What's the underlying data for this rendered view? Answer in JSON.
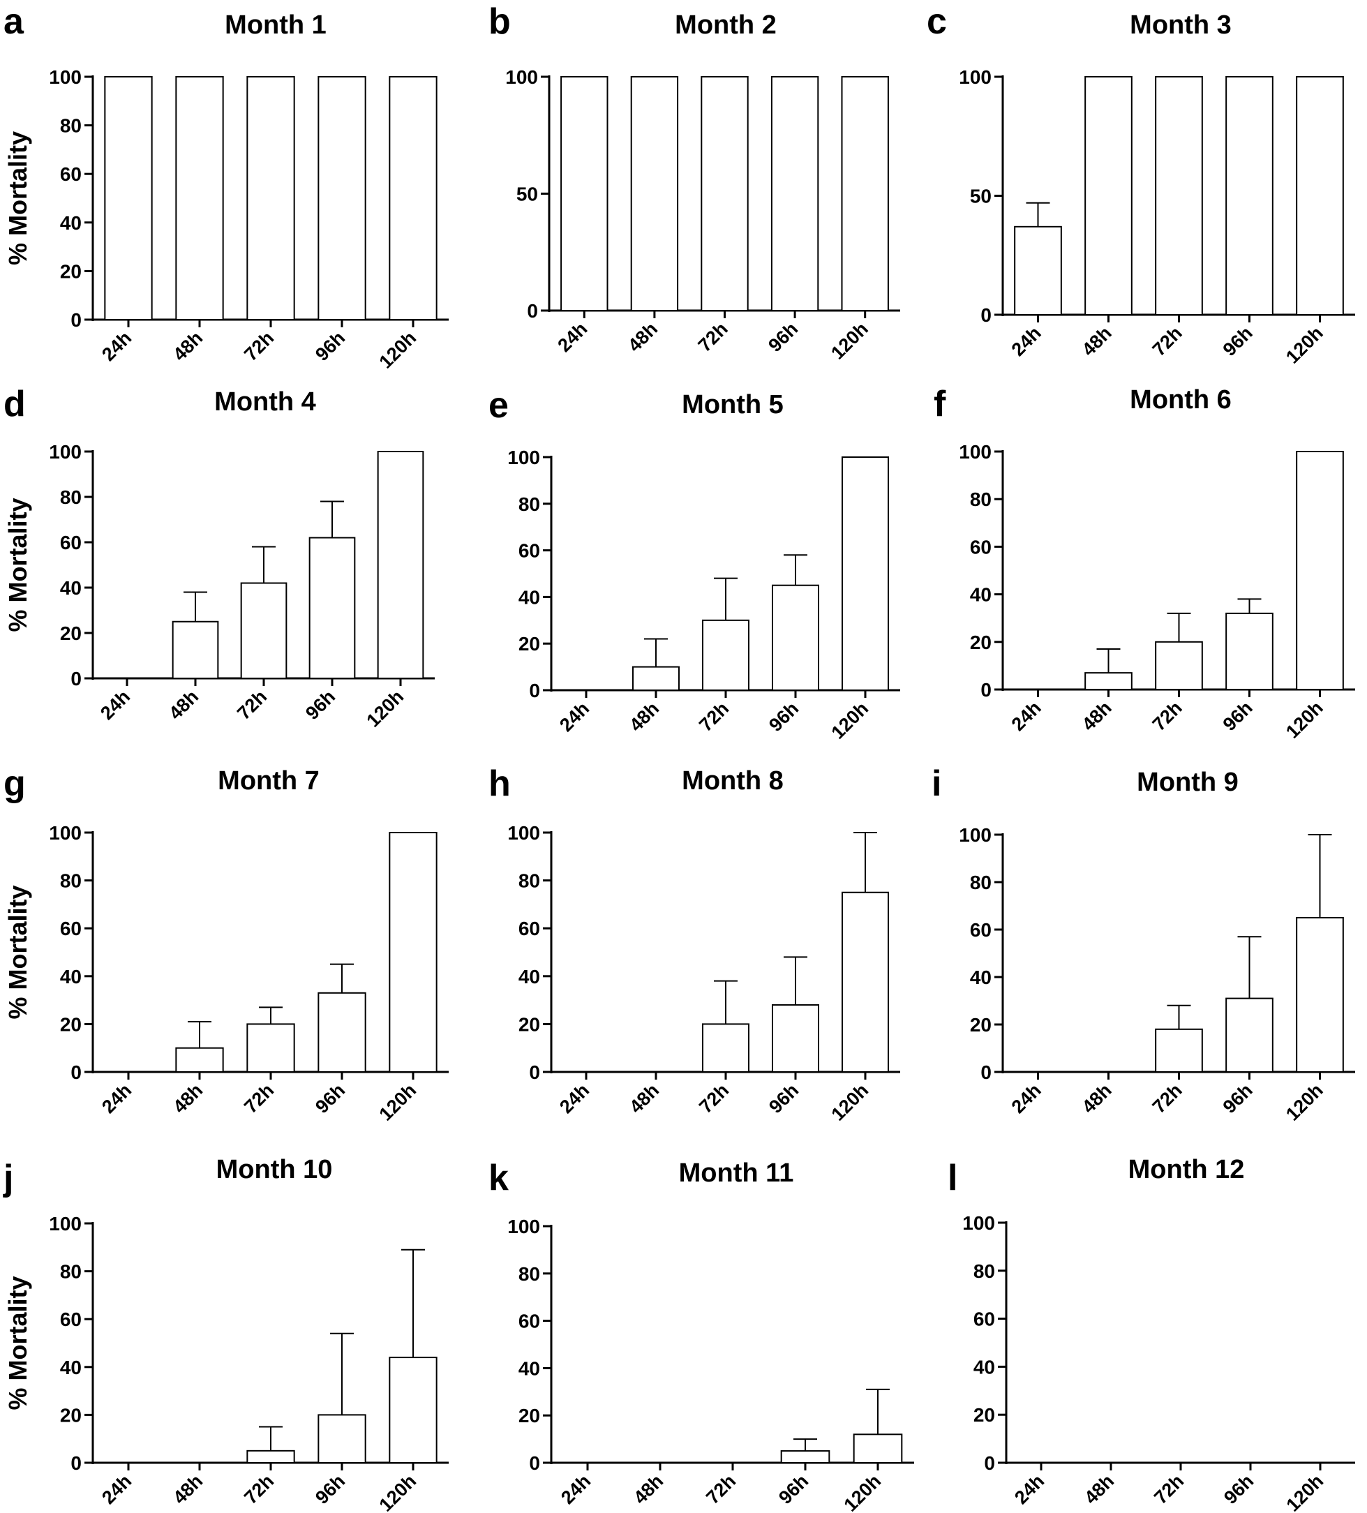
{
  "chart_data": [
    {
      "panel": "a",
      "type": "bar",
      "title": "Month 1",
      "ylabel": "% Mortality",
      "ylim": [
        0,
        100
      ],
      "yticks": [
        0,
        20,
        40,
        60,
        80,
        100
      ],
      "categories": [
        "24h",
        "48h",
        "72h",
        "96h",
        "120h"
      ],
      "values": [
        100,
        100,
        100,
        100,
        100
      ],
      "error_upper": [
        null,
        null,
        null,
        null,
        null
      ]
    },
    {
      "panel": "b",
      "type": "bar",
      "title": "Month 2",
      "ylabel": "",
      "ylim": [
        0,
        100
      ],
      "yticks": [
        0,
        50,
        100
      ],
      "categories": [
        "24h",
        "48h",
        "72h",
        "96h",
        "120h"
      ],
      "values": [
        100,
        100,
        100,
        100,
        100
      ],
      "error_upper": [
        null,
        null,
        null,
        null,
        null
      ]
    },
    {
      "panel": "c",
      "type": "bar",
      "title": "Month 3",
      "ylabel": "",
      "ylim": [
        0,
        100
      ],
      "yticks": [
        0,
        50,
        100
      ],
      "categories": [
        "24h",
        "48h",
        "72h",
        "96h",
        "120h"
      ],
      "values": [
        37,
        100,
        100,
        100,
        100
      ],
      "error_upper": [
        47,
        null,
        null,
        null,
        null
      ]
    },
    {
      "panel": "d",
      "type": "bar",
      "title": "Month 4",
      "ylabel": "% Mortality",
      "ylim": [
        0,
        100
      ],
      "yticks": [
        0,
        20,
        40,
        60,
        80,
        100
      ],
      "categories": [
        "24h",
        "48h",
        "72h",
        "96h",
        "120h"
      ],
      "values": [
        0,
        25,
        42,
        62,
        100
      ],
      "error_upper": [
        null,
        38,
        58,
        78,
        null
      ]
    },
    {
      "panel": "e",
      "type": "bar",
      "title": "Month 5",
      "ylabel": "",
      "ylim": [
        0,
        100
      ],
      "yticks": [
        0,
        20,
        40,
        60,
        80,
        100
      ],
      "categories": [
        "24h",
        "48h",
        "72h",
        "96h",
        "120h"
      ],
      "values": [
        0,
        10,
        30,
        45,
        100
      ],
      "error_upper": [
        null,
        22,
        48,
        58,
        null
      ]
    },
    {
      "panel": "f",
      "type": "bar",
      "title": "Month 6",
      "ylabel": "",
      "ylim": [
        0,
        100
      ],
      "yticks": [
        0,
        20,
        40,
        60,
        80,
        100
      ],
      "categories": [
        "24h",
        "48h",
        "72h",
        "96h",
        "120h"
      ],
      "values": [
        0,
        7,
        20,
        32,
        100
      ],
      "error_upper": [
        null,
        17,
        32,
        38,
        null
      ]
    },
    {
      "panel": "g",
      "type": "bar",
      "title": "Month 7",
      "ylabel": "% Mortality",
      "ylim": [
        0,
        100
      ],
      "yticks": [
        0,
        20,
        40,
        60,
        80,
        100
      ],
      "categories": [
        "24h",
        "48h",
        "72h",
        "96h",
        "120h"
      ],
      "values": [
        0,
        10,
        20,
        33,
        100
      ],
      "error_upper": [
        null,
        21,
        27,
        45,
        null
      ]
    },
    {
      "panel": "h",
      "type": "bar",
      "title": "Month 8",
      "ylabel": "",
      "ylim": [
        0,
        100
      ],
      "yticks": [
        0,
        20,
        40,
        60,
        80,
        100
      ],
      "categories": [
        "24h",
        "48h",
        "72h",
        "96h",
        "120h"
      ],
      "values": [
        0,
        0,
        20,
        28,
        75
      ],
      "error_upper": [
        null,
        null,
        38,
        48,
        100
      ]
    },
    {
      "panel": "i",
      "type": "bar",
      "title": "Month 9",
      "ylabel": "",
      "ylim": [
        0,
        100
      ],
      "yticks": [
        0,
        20,
        40,
        60,
        80,
        100
      ],
      "categories": [
        "24h",
        "48h",
        "72h",
        "96h",
        "120h"
      ],
      "values": [
        0,
        0,
        18,
        31,
        65
      ],
      "error_upper": [
        null,
        null,
        28,
        57,
        100
      ]
    },
    {
      "panel": "j",
      "type": "bar",
      "title": "Month 10",
      "ylabel": "% Mortality",
      "ylim": [
        0,
        100
      ],
      "yticks": [
        0,
        20,
        40,
        60,
        80,
        100
      ],
      "categories": [
        "24h",
        "48h",
        "72h",
        "96h",
        "120h"
      ],
      "values": [
        0,
        0,
        5,
        20,
        44
      ],
      "error_upper": [
        null,
        null,
        15,
        54,
        89
      ]
    },
    {
      "panel": "k",
      "type": "bar",
      "title": "Month 11",
      "ylabel": "",
      "ylim": [
        0,
        100
      ],
      "yticks": [
        0,
        20,
        40,
        60,
        80,
        100
      ],
      "categories": [
        "24h",
        "48h",
        "72h",
        "96h",
        "120h"
      ],
      "values": [
        0,
        0,
        0,
        5,
        12
      ],
      "error_upper": [
        null,
        null,
        null,
        10,
        31
      ]
    },
    {
      "panel": "l",
      "type": "bar",
      "title": "Month 12",
      "ylabel": "",
      "ylim": [
        0,
        100
      ],
      "yticks": [
        0,
        20,
        40,
        60,
        80,
        100
      ],
      "categories": [
        "24h",
        "48h",
        "72h",
        "96h",
        "120h"
      ],
      "values": [
        0,
        0,
        0,
        0,
        0
      ],
      "error_upper": [
        null,
        null,
        null,
        null,
        null
      ]
    }
  ]
}
